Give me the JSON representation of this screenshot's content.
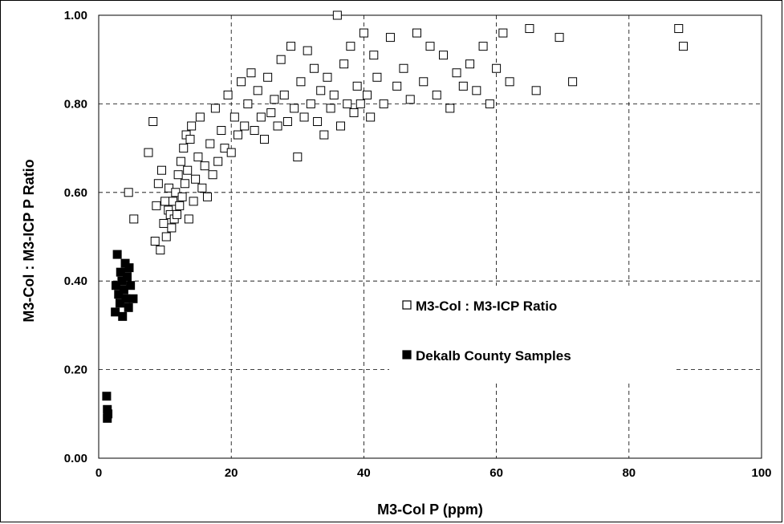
{
  "chart_data": {
    "type": "scatter",
    "xlabel": "M3-Col P (ppm)",
    "ylabel": "M3-Col : M3-ICP P Ratio",
    "xlim": [
      0,
      100
    ],
    "ylim": [
      0,
      1
    ],
    "x_ticks": [
      "0",
      "20",
      "40",
      "60",
      "80",
      "100"
    ],
    "y_ticks": [
      "0.00",
      "0.20",
      "0.40",
      "0.60",
      "0.80",
      "1.00"
    ],
    "grid": "dashed",
    "legend_position": "center-right",
    "series": [
      {
        "name": "M3-Col : M3-ICP Ratio",
        "marker": "hollow-square",
        "color": "#000000",
        "points": [
          [
            4.5,
            0.6
          ],
          [
            5.3,
            0.54
          ],
          [
            7.5,
            0.69
          ],
          [
            8.2,
            0.76
          ],
          [
            8.5,
            0.49
          ],
          [
            8.7,
            0.57
          ],
          [
            9.0,
            0.62
          ],
          [
            9.3,
            0.47
          ],
          [
            9.5,
            0.65
          ],
          [
            9.8,
            0.53
          ],
          [
            10.0,
            0.58
          ],
          [
            10.2,
            0.5
          ],
          [
            10.5,
            0.56
          ],
          [
            10.6,
            0.61
          ],
          [
            10.8,
            0.55
          ],
          [
            11.0,
            0.52
          ],
          [
            11.2,
            0.58
          ],
          [
            11.4,
            0.54
          ],
          [
            11.6,
            0.6
          ],
          [
            11.8,
            0.55
          ],
          [
            12.0,
            0.64
          ],
          [
            12.2,
            0.57
          ],
          [
            12.4,
            0.67
          ],
          [
            12.6,
            0.59
          ],
          [
            12.8,
            0.7
          ],
          [
            13.0,
            0.62
          ],
          [
            13.2,
            0.73
          ],
          [
            13.4,
            0.65
          ],
          [
            13.6,
            0.54
          ],
          [
            13.8,
            0.72
          ],
          [
            14.0,
            0.75
          ],
          [
            14.3,
            0.58
          ],
          [
            14.6,
            0.63
          ],
          [
            15.0,
            0.68
          ],
          [
            15.3,
            0.77
          ],
          [
            15.6,
            0.61
          ],
          [
            16.0,
            0.66
          ],
          [
            16.4,
            0.59
          ],
          [
            16.8,
            0.71
          ],
          [
            17.2,
            0.64
          ],
          [
            17.6,
            0.79
          ],
          [
            18.0,
            0.67
          ],
          [
            18.5,
            0.74
          ],
          [
            19.0,
            0.7
          ],
          [
            19.5,
            0.82
          ],
          [
            20.0,
            0.69
          ],
          [
            20.5,
            0.77
          ],
          [
            21.0,
            0.73
          ],
          [
            21.5,
            0.85
          ],
          [
            22.0,
            0.75
          ],
          [
            22.5,
            0.8
          ],
          [
            23.0,
            0.87
          ],
          [
            23.5,
            0.74
          ],
          [
            24.0,
            0.83
          ],
          [
            24.5,
            0.77
          ],
          [
            25.0,
            0.72
          ],
          [
            25.5,
            0.86
          ],
          [
            26.0,
            0.78
          ],
          [
            26.5,
            0.81
          ],
          [
            27.0,
            0.75
          ],
          [
            27.5,
            0.9
          ],
          [
            28.0,
            0.82
          ],
          [
            28.5,
            0.76
          ],
          [
            29.0,
            0.93
          ],
          [
            29.5,
            0.79
          ],
          [
            30.0,
            0.68
          ],
          [
            30.5,
            0.85
          ],
          [
            31.0,
            0.77
          ],
          [
            31.5,
            0.92
          ],
          [
            32.0,
            0.8
          ],
          [
            32.5,
            0.88
          ],
          [
            33.0,
            0.76
          ],
          [
            33.5,
            0.83
          ],
          [
            34.0,
            0.73
          ],
          [
            34.5,
            0.86
          ],
          [
            35.0,
            0.79
          ],
          [
            35.5,
            0.82
          ],
          [
            36.0,
            1.0
          ],
          [
            36.5,
            0.75
          ],
          [
            37.0,
            0.89
          ],
          [
            37.5,
            0.8
          ],
          [
            38.0,
            0.93
          ],
          [
            38.5,
            0.78
          ],
          [
            39.0,
            0.84
          ],
          [
            39.5,
            0.8
          ],
          [
            40.0,
            0.96
          ],
          [
            40.5,
            0.82
          ],
          [
            41.0,
            0.77
          ],
          [
            41.5,
            0.91
          ],
          [
            42.0,
            0.86
          ],
          [
            43.0,
            0.8
          ],
          [
            44.0,
            0.95
          ],
          [
            45.0,
            0.84
          ],
          [
            46.0,
            0.88
          ],
          [
            47.0,
            0.81
          ],
          [
            48.0,
            0.96
          ],
          [
            49.0,
            0.85
          ],
          [
            50.0,
            0.93
          ],
          [
            51.0,
            0.82
          ],
          [
            52.0,
            0.91
          ],
          [
            53.0,
            0.79
          ],
          [
            54.0,
            0.87
          ],
          [
            55.0,
            0.84
          ],
          [
            56.0,
            0.89
          ],
          [
            57.0,
            0.83
          ],
          [
            58.0,
            0.93
          ],
          [
            59.0,
            0.8
          ],
          [
            60.0,
            0.88
          ],
          [
            61.0,
            0.96
          ],
          [
            62.0,
            0.85
          ],
          [
            65.0,
            0.97
          ],
          [
            66.0,
            0.83
          ],
          [
            69.5,
            0.95
          ],
          [
            71.5,
            0.85
          ],
          [
            87.5,
            0.97
          ],
          [
            88.2,
            0.93
          ]
        ]
      },
      {
        "name": "Dekalb County Samples",
        "marker": "filled-square",
        "color": "#000000",
        "points": [
          [
            1.2,
            0.14
          ],
          [
            1.3,
            0.11
          ],
          [
            1.3,
            0.09
          ],
          [
            1.4,
            0.1
          ],
          [
            2.5,
            0.33
          ],
          [
            2.6,
            0.39
          ],
          [
            2.8,
            0.46
          ],
          [
            3.0,
            0.37
          ],
          [
            3.2,
            0.35
          ],
          [
            3.3,
            0.42
          ],
          [
            3.5,
            0.4
          ],
          [
            3.6,
            0.32
          ],
          [
            3.8,
            0.38
          ],
          [
            4.0,
            0.44
          ],
          [
            4.1,
            0.36
          ],
          [
            4.3,
            0.41
          ],
          [
            4.5,
            0.34
          ],
          [
            4.6,
            0.43
          ],
          [
            4.8,
            0.39
          ],
          [
            5.2,
            0.36
          ]
        ]
      }
    ]
  }
}
